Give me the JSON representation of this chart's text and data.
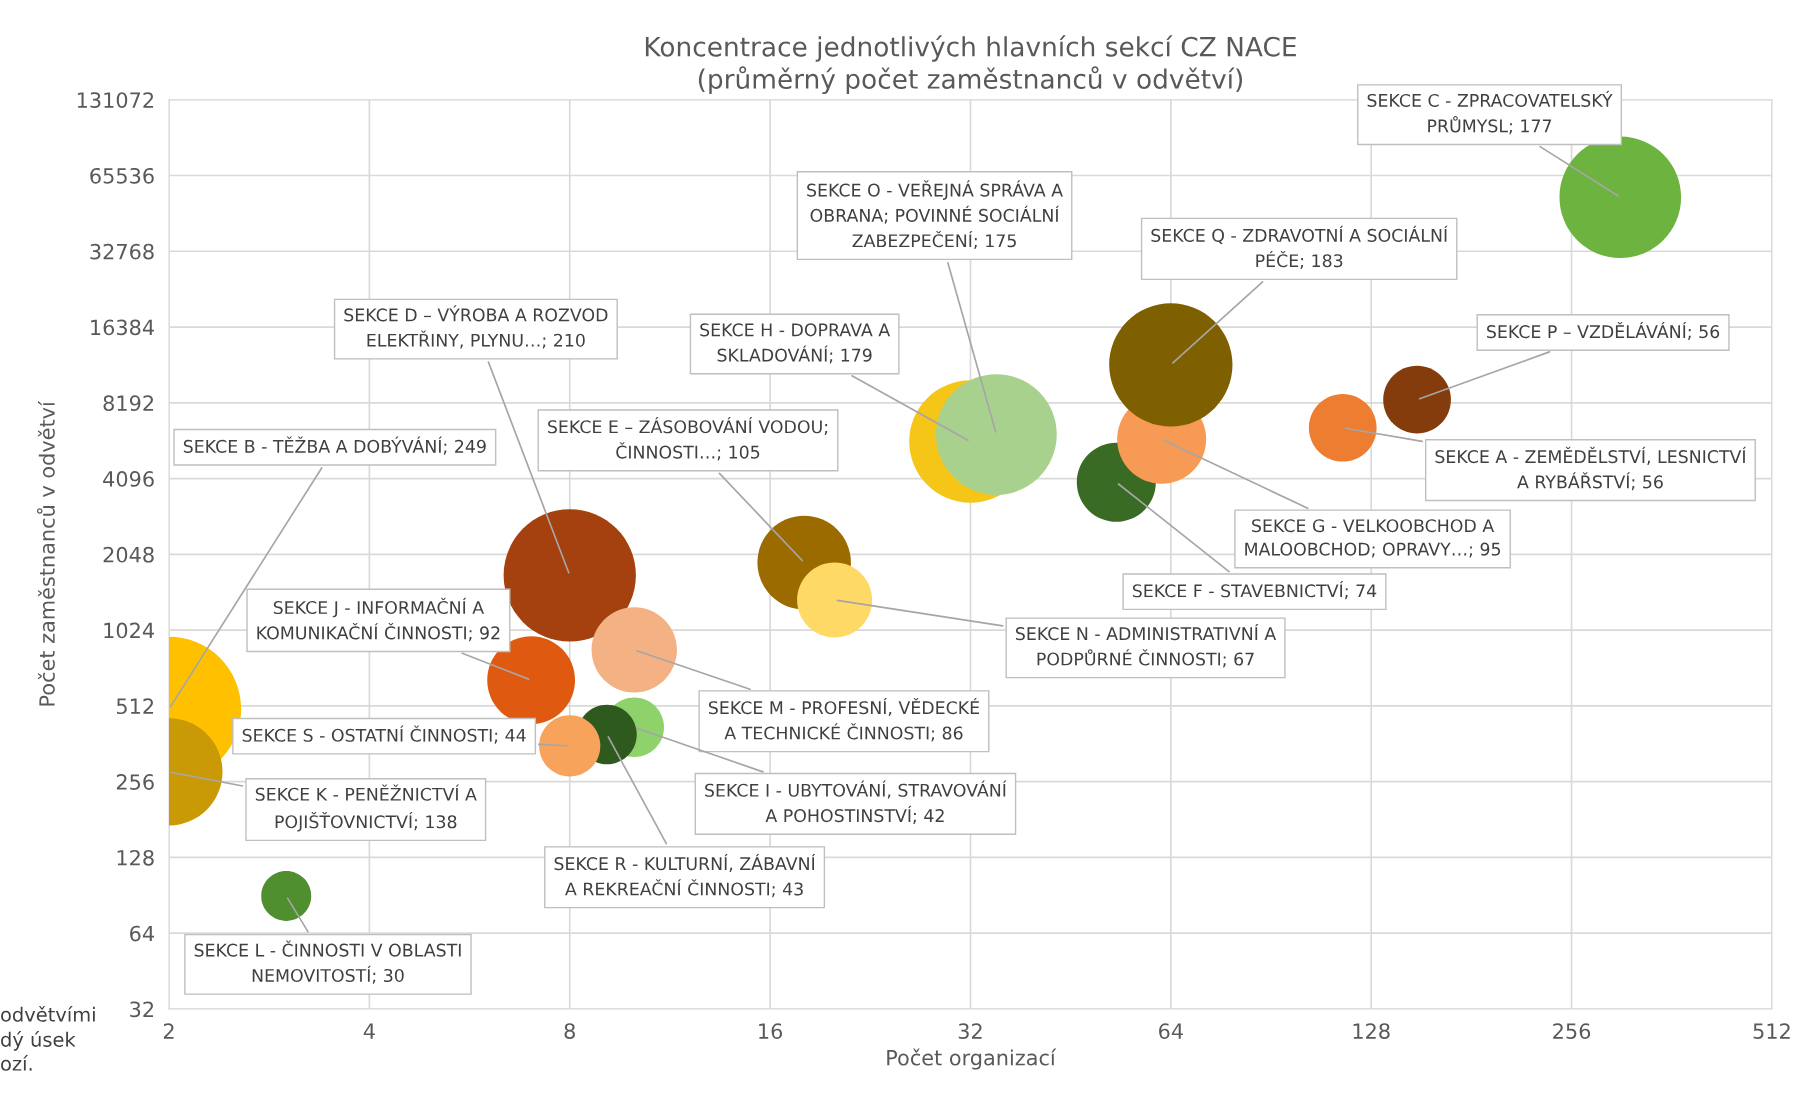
{
  "chart_data": {
    "type": "bubble",
    "title": "Koncentrace jednotlivých hlavních sekcí CZ NACE\n(průměrný počet zaměstnanců v odvětví)",
    "xlabel": "Počet organizací",
    "ylabel": "Počet zaměstnanců v odvětví",
    "log": "xy",
    "grid": true,
    "xlim": [
      2,
      512
    ],
    "xticks": [
      2,
      4,
      8,
      16,
      32,
      64,
      128,
      256,
      512
    ],
    "ylim": [
      32,
      131072
    ],
    "yticks": [
      32,
      64,
      128,
      256,
      512,
      1024,
      2048,
      4096,
      8192,
      16384,
      32768,
      65536,
      131072
    ],
    "x": [
      303,
      2,
      2,
      3.0,
      8.0,
      7.0,
      10.0,
      10.0,
      9.1,
      8.0,
      18,
      20,
      32,
      35,
      53,
      62,
      64,
      116,
      150
    ],
    "values": [
      53700,
      498,
      280,
      90,
      1690,
      648,
      855,
      421,
      394,
      355,
      1900,
      1350,
      5750,
      6130,
      3960,
      5870,
      11600,
      6520,
      8430
    ],
    "sizes": [
      0.71,
      1,
      0.55,
      0.12,
      0.84,
      0.37,
      0.35,
      0.17,
      0.17,
      0.18,
      0.42,
      0.27,
      0.72,
      0.7,
      0.3,
      0.38,
      0.73,
      0.22,
      0.22
    ],
    "colors": [
      "#6db33f",
      "#ffc000",
      "#c99a06",
      "#4f8f2f",
      "#a5400f",
      "#df5a10",
      "#f4b183",
      "#8fd16a",
      "#2f5a1e",
      "#f7a35c",
      "#9c6b00",
      "#ffd966",
      "#f5c518",
      "#a9d18e",
      "#3a6b24",
      "#f79a55",
      "#7f6000",
      "#ed7d31",
      "#843c0c"
    ],
    "annotations": [
      {
        "text": "SEKCE C - ZPRACOVATELSKÝ\nPRŮMYSL; 177",
        "x": 303,
        "y": 53700
      },
      {
        "text": "SEKCE B - TĚŽBA A DOBÝVÁNÍ; 249",
        "x": 2,
        "y": 498
      },
      {
        "text": "SEKCE K - PENĚŽNICTVÍ A\nPOJIŠŤOVNICTVÍ; 138",
        "x": 2,
        "y": 280
      },
      {
        "text": "SEKCE L - ČINNOSTI V OBLASTI\nNEMOVITOSTÍ; 30",
        "x": 3.0,
        "y": 90
      },
      {
        "text": "SEKCE D – VÝROBA A ROZVOD\nELEKTŘINY, PLYNU…; 210",
        "x": 8.0,
        "y": 1690
      },
      {
        "text": "SEKCE J - INFORMAČNÍ A\nKOMUNIKAČNÍ ČINNOSTI; 92",
        "x": 7.0,
        "y": 648
      },
      {
        "text": "SEKCE M - PROFESNÍ, VĚDECKÉ\nA TECHNICKÉ ČINNOSTI; 86",
        "x": 10.0,
        "y": 855
      },
      {
        "text": "SEKCE I - UBYTOVÁNÍ, STRAVOVÁNÍ\nA POHOSTINSTVÍ; 42",
        "x": 10.0,
        "y": 421
      },
      {
        "text": "SEKCE R - KULTURNÍ, ZÁBAVNÍ\nA REKREAČNÍ ČINNOSTI; 43",
        "x": 9.1,
        "y": 394
      },
      {
        "text": "SEKCE S - OSTATNÍ ČINNOSTI; 44",
        "x": 8.0,
        "y": 355
      },
      {
        "text": "SEKCE E – ZÁSOBOVÁNÍ VODOU;\nČINNOSTI…; 105",
        "x": 18,
        "y": 1900
      },
      {
        "text": "SEKCE N - ADMINISTRATIVNÍ A\nPODPŮRNÉ ČINNOSTI; 67",
        "x": 20,
        "y": 1350
      },
      {
        "text": "SEKCE H - DOPRAVA A\nSKLADOVÁNÍ; 179",
        "x": 32,
        "y": 5750
      },
      {
        "text": "SEKCE O - VEŘEJNÁ SPRÁVA A\nOBRANA; POVINNÉ SOCIÁLNÍ\nZABEZPEČENÍ; 175",
        "x": 35,
        "y": 6130
      },
      {
        "text": "SEKCE F - STAVEBNICTVÍ; 74",
        "x": 53,
        "y": 3960
      },
      {
        "text": "SEKCE G - VELKOOBCHOD A\nMALOOBCHOD; OPRAVY…; 95",
        "x": 62,
        "y": 5870
      },
      {
        "text": "SEKCE Q - ZDRAVOTNÍ A SOCIÁLNÍ\nPÉČE; 183",
        "x": 64,
        "y": 11600
      },
      {
        "text": "SEKCE A - ZEMĚDĚLSTVÍ, LESNICTVÍ\nA RYBÁŘSTVÍ; 56",
        "x": 116,
        "y": 6520
      },
      {
        "text": "SEKCE P – VZDĚLÁVÁNÍ; 56",
        "x": 150,
        "y": 8430
      },
      "odvětvími\ndý úsek\nozí."
    ]
  }
}
